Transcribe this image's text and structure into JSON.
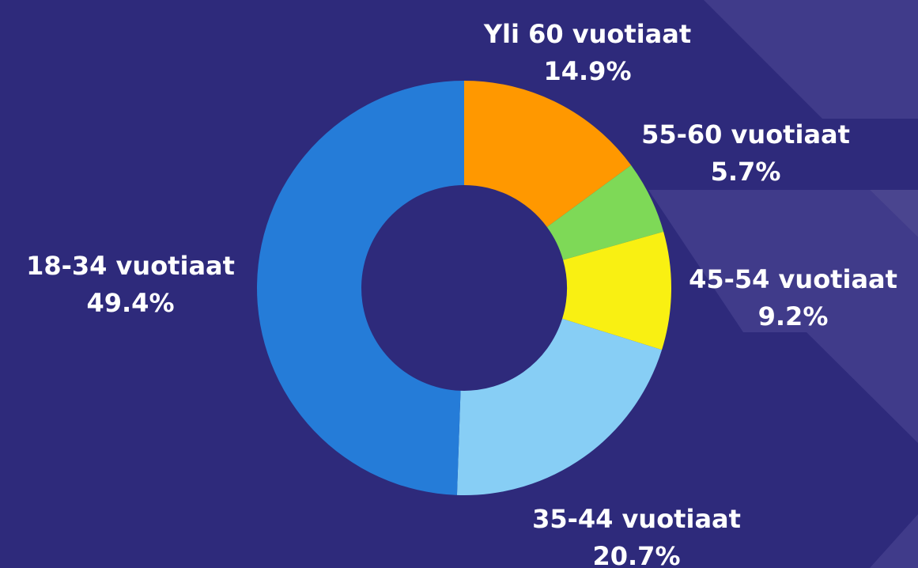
{
  "chart_data": {
    "type": "donut",
    "categories": [
      "Yli 60 vuotiaat",
      "55-60 vuotiaat",
      "45-54 vuotiaat",
      "35-44 vuotiaat",
      "18-34 vuotiaat"
    ],
    "values": [
      14.9,
      5.7,
      9.2,
      20.7,
      49.4
    ],
    "value_labels": [
      "14.9%",
      "5.7%",
      "9.2%",
      "20.7%",
      "49.4%"
    ],
    "colors": [
      "#ff9800",
      "#7ed957",
      "#f9f012",
      "#87cef5",
      "#257cd8"
    ]
  }
}
